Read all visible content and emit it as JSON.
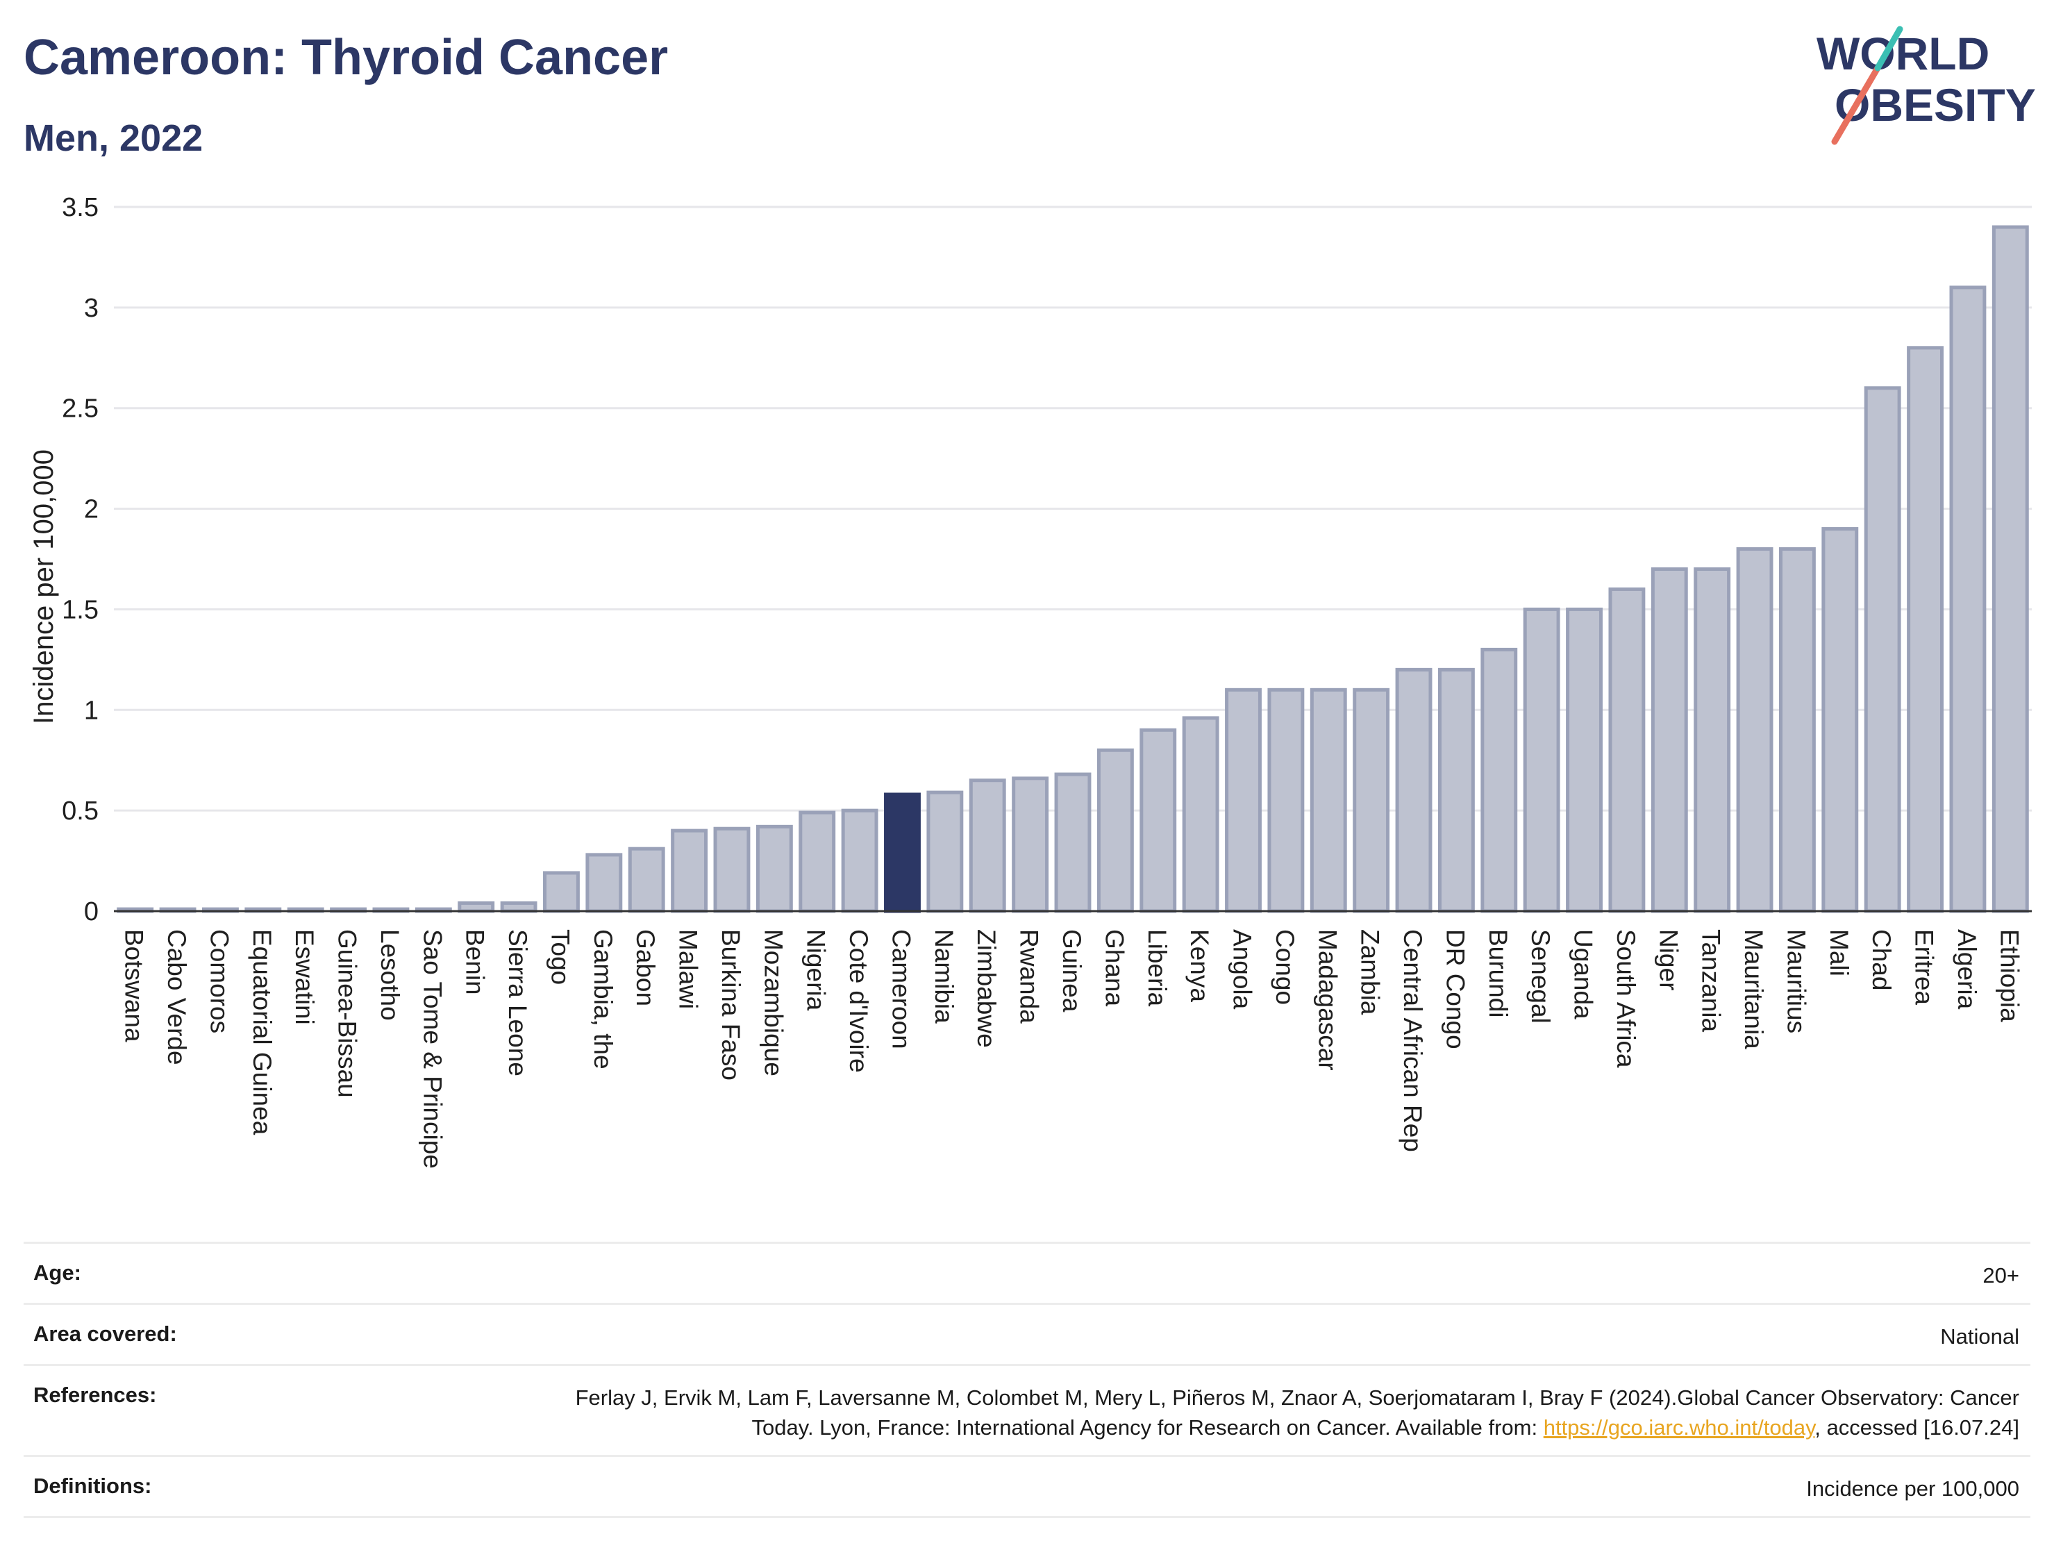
{
  "header": {
    "title": "Cameroon: Thyroid Cancer",
    "subtitle": "Men, 2022"
  },
  "logo": {
    "line1": "WORLD",
    "line2": "OBESITY",
    "colors": {
      "text": "#2c3765",
      "slash_coral": "#e8705e",
      "slash_teal": "#3bbfb3"
    }
  },
  "chart_data": {
    "type": "bar",
    "title": "",
    "xlabel": "",
    "ylabel": "Incidence per 100,000",
    "ylim": [
      0,
      3.5
    ],
    "yticks": [
      0,
      0.5,
      1,
      1.5,
      2,
      2.5,
      3,
      3.5
    ],
    "ytick_labels": [
      "0",
      "0.5",
      "1",
      "1.5",
      "2",
      "2.5",
      "3",
      "3.5"
    ],
    "grid": true,
    "highlight": "Cameroon",
    "colors": {
      "bar": "#bec2d0",
      "bar_edge": "#9aa1b8",
      "highlight": "#2c3765",
      "grid": "#e6e6ea",
      "axis": "#333333"
    },
    "categories": [
      "Botswana",
      "Cabo Verde",
      "Comoros",
      "Equatorial Guinea",
      "Eswatini",
      "Guinea-Bissau",
      "Lesotho",
      "Sao Tome & Principe",
      "Benin",
      "Sierra Leone",
      "Togo",
      "Gambia, the",
      "Gabon",
      "Malawi",
      "Burkina Faso",
      "Mozambique",
      "Nigeria",
      "Cote d'Ivoire",
      "Cameroon",
      "Namibia",
      "Zimbabwe",
      "Rwanda",
      "Guinea",
      "Ghana",
      "Liberia",
      "Kenya",
      "Angola",
      "Congo",
      "Madagascar",
      "Zambia",
      "Central African Rep",
      "DR Congo",
      "Burundi",
      "Senegal",
      "Uganda",
      "South Africa",
      "Niger",
      "Tanzania",
      "Mauritania",
      "Mauritius",
      "Mali",
      "Chad",
      "Eritrea",
      "Algeria",
      "Ethiopia"
    ],
    "values": [
      0.01,
      0.01,
      0.01,
      0.01,
      0.01,
      0.01,
      0.01,
      0.01,
      0.04,
      0.04,
      0.19,
      0.28,
      0.31,
      0.4,
      0.41,
      0.42,
      0.49,
      0.5,
      0.58,
      0.59,
      0.65,
      0.66,
      0.68,
      0.8,
      0.9,
      0.96,
      1.1,
      1.1,
      1.1,
      1.1,
      1.2,
      1.2,
      1.3,
      1.5,
      1.5,
      1.6,
      1.7,
      1.7,
      1.8,
      1.8,
      1.9,
      2.6,
      2.8,
      3.1,
      3.4
    ]
  },
  "meta": {
    "age_label": "Age:",
    "age_value": "20+",
    "area_label": "Area covered:",
    "area_value": "National",
    "references_label": "References:",
    "references_text": "Ferlay J, Ervik M, Lam F, Laversanne M, Colombet M, Mery L, Piñeros M, Znaor A, Soerjomataram I, Bray F (2024).Global Cancer Observatory: Cancer Today. Lyon, France: International Agency for Research on Cancer. Available from:",
    "references_link": "https://gco.iarc.who.int/today",
    "references_suffix": ", accessed [16.07.24]",
    "definitions_label": "Definitions:",
    "definitions_value": "Incidence per 100,000"
  }
}
